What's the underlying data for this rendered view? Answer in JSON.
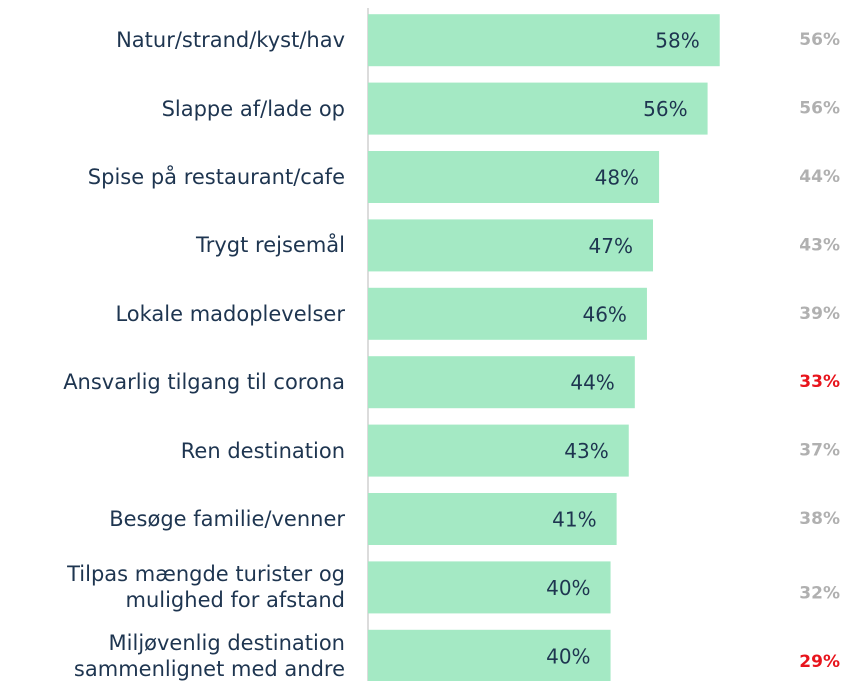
{
  "chart_data": {
    "type": "bar",
    "orientation": "horizontal",
    "categories": [
      "Natur/strand/kyst/hav",
      "Slappe af/lade op",
      "Spise på restaurant/cafe",
      "Trygt rejsemål",
      "Lokale madoplevelser",
      "Ansvarlig tilgang til corona",
      "Ren destination",
      "Besøge familie/venner",
      "Tilpas mængde turister og\nmulighed for afstand",
      "Miljøvenlig destination\nsammenlignet med andre"
    ],
    "values": [
      58,
      56,
      48,
      47,
      46,
      44,
      43,
      41,
      40,
      40
    ],
    "value_labels": [
      "58%",
      "56%",
      "48%",
      "47%",
      "46%",
      "44%",
      "43%",
      "41%",
      "40%",
      "40%"
    ],
    "color": "#a4e9c4",
    "xlim": [
      0,
      78
    ],
    "comparison": {
      "values": [
        56,
        56,
        44,
        43,
        39,
        33,
        37,
        38,
        32,
        29
      ],
      "value_labels": [
        "56%",
        "56%",
        "44%",
        "43%",
        "39%",
        "33%",
        "37%",
        "38%",
        "32%",
        "29%"
      ],
      "colors": [
        "#b0b0b0",
        "#b0b0b0",
        "#b0b0b0",
        "#b0b0b0",
        "#b0b0b0",
        "#e8141c",
        "#b0b0b0",
        "#b0b0b0",
        "#b0b0b0",
        "#e8141c"
      ]
    }
  }
}
